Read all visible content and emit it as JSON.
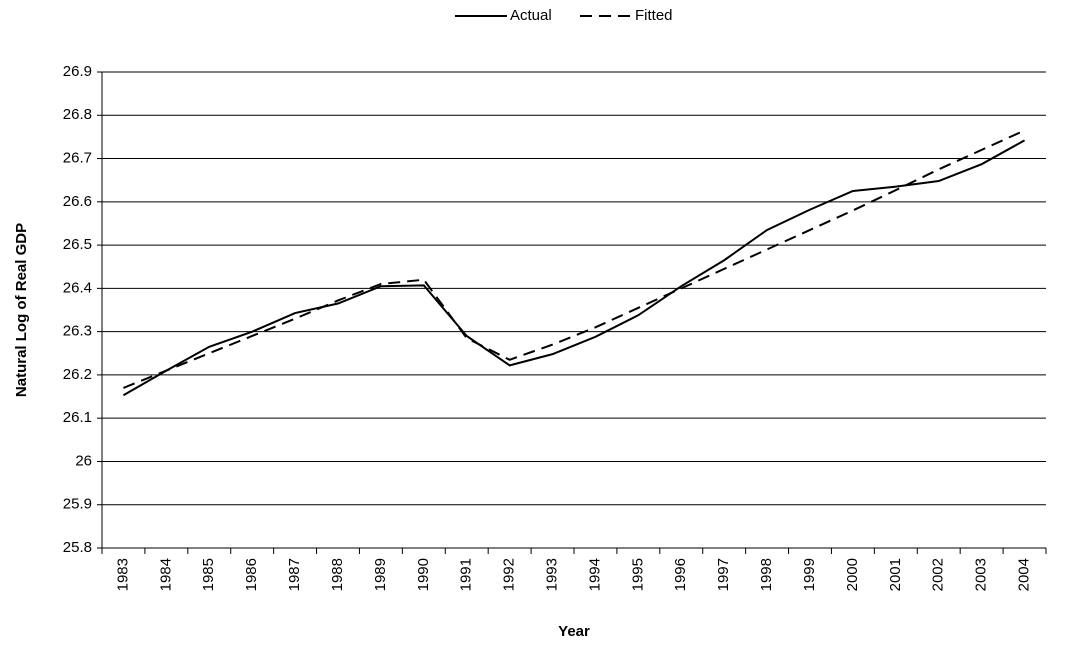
{
  "chart_data": {
    "type": "line",
    "x_label": "Year",
    "y_label": "Natural Log of Real GDP",
    "categories": [
      "1983",
      "1984",
      "1985",
      "1986",
      "1987",
      "1988",
      "1989",
      "1990",
      "1991",
      "1992",
      "1993",
      "1994",
      "1995",
      "1996",
      "1997",
      "1998",
      "1999",
      "2000",
      "2001",
      "2002",
      "2003",
      "2004"
    ],
    "series": [
      {
        "name": "Actual",
        "color": "#000000",
        "dashed": false,
        "values": [
          26.153,
          26.21,
          26.265,
          26.3,
          26.343,
          26.365,
          26.405,
          26.407,
          26.29,
          26.222,
          26.248,
          26.288,
          26.338,
          26.405,
          26.465,
          26.535,
          26.582,
          26.625,
          26.635,
          26.648,
          26.687,
          26.742
        ]
      },
      {
        "name": "Fitted",
        "color": "#000000",
        "dashed": true,
        "values": [
          26.17,
          26.21,
          26.25,
          26.29,
          26.33,
          26.372,
          26.41,
          26.42,
          26.285,
          26.235,
          26.27,
          26.31,
          26.355,
          26.4,
          26.445,
          26.49,
          26.535,
          26.58,
          26.627,
          26.675,
          26.72,
          26.765
        ]
      }
    ],
    "ylim": [
      25.8,
      26.9
    ],
    "yticks": [
      25.8,
      25.9,
      26,
      26.1,
      26.2,
      26.3,
      26.4,
      26.5,
      26.6,
      26.7,
      26.8,
      26.9
    ],
    "grid": true,
    "legend": "top"
  }
}
